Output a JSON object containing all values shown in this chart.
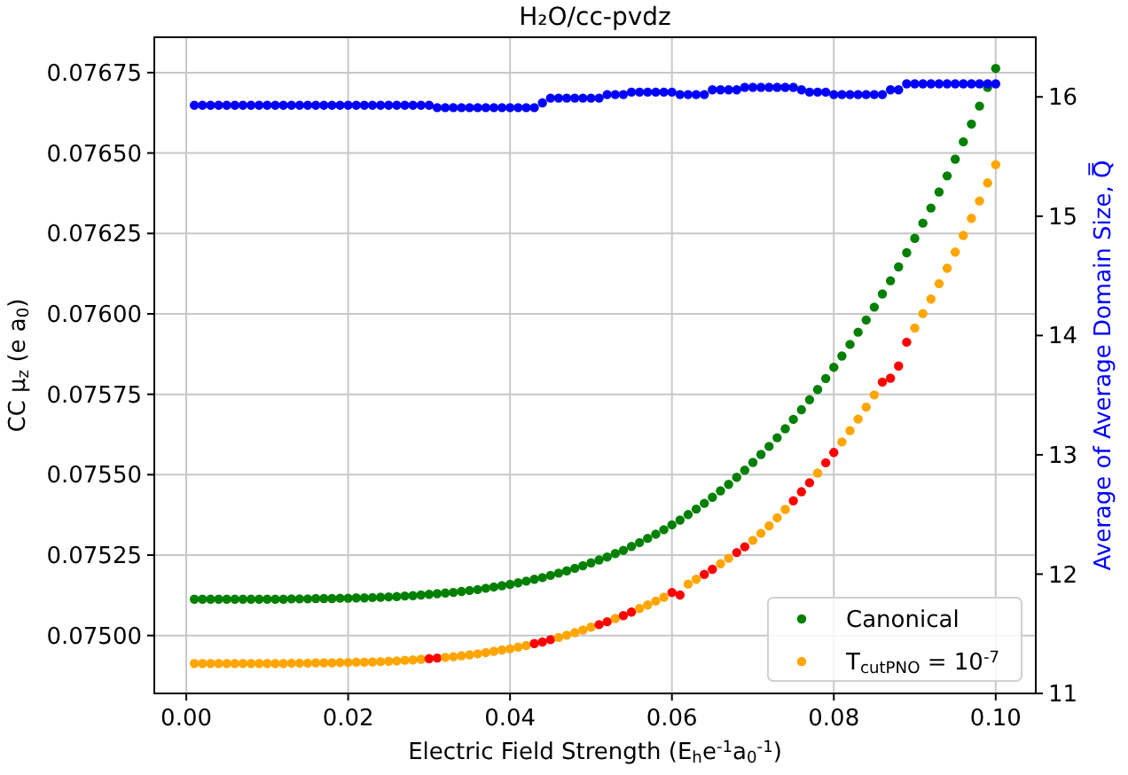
{
  "chart_data": {
    "type": "scatter",
    "title": "H₂O/cc-pvdz",
    "xlabel": "Electric Field Strength (E$_{h}$e$^{-1}$a$_{0}$$^{-1}$)",
    "ylabel": "CC μ$_{z}$ (e a$_{0}$)",
    "y2label": "Average of Average Domain Size, Q̿",
    "x": [
      0.001,
      0.002,
      0.003,
      0.004,
      0.005,
      0.006,
      0.007,
      0.008,
      0.009,
      0.01,
      0.011,
      0.012,
      0.013,
      0.014,
      0.015,
      0.016,
      0.017,
      0.018,
      0.019,
      0.02,
      0.021,
      0.022,
      0.023,
      0.024,
      0.025,
      0.026,
      0.027,
      0.028,
      0.029,
      0.03,
      0.031,
      0.032,
      0.033,
      0.034,
      0.035,
      0.036,
      0.037,
      0.038,
      0.039,
      0.04,
      0.041,
      0.042,
      0.043,
      0.044,
      0.045,
      0.046,
      0.047,
      0.048,
      0.049,
      0.05,
      0.051,
      0.052,
      0.053,
      0.054,
      0.055,
      0.056,
      0.057,
      0.058,
      0.059,
      0.06,
      0.061,
      0.062,
      0.063,
      0.064,
      0.065,
      0.066,
      0.067,
      0.068,
      0.069,
      0.07,
      0.071,
      0.072,
      0.073,
      0.074,
      0.075,
      0.076,
      0.077,
      0.078,
      0.079,
      0.08,
      0.081,
      0.082,
      0.083,
      0.084,
      0.085,
      0.086,
      0.087,
      0.088,
      0.089,
      0.09,
      0.091,
      0.092,
      0.093,
      0.094,
      0.095,
      0.096,
      0.097,
      0.098,
      0.099,
      0.1
    ],
    "series": [
      {
        "name": "Canonical",
        "color": "#008000",
        "values": [
          0.075113,
          0.075113,
          0.075113,
          0.075113,
          0.075113,
          0.075113,
          0.075113,
          0.075113,
          0.075113,
          0.075113,
          0.075113,
          0.075113,
          0.075114,
          0.075114,
          0.075114,
          0.075115,
          0.075115,
          0.075115,
          0.075116,
          0.075116,
          0.075117,
          0.075117,
          0.075118,
          0.075119,
          0.07512,
          0.075121,
          0.075123,
          0.075124,
          0.075126,
          0.075128,
          0.07513,
          0.075132,
          0.075134,
          0.075137,
          0.07514,
          0.075143,
          0.075147,
          0.075151,
          0.075155,
          0.075159,
          0.075164,
          0.075169,
          0.075175,
          0.07518,
          0.075187,
          0.075194,
          0.075201,
          0.075209,
          0.075217,
          0.075226,
          0.075235,
          0.075244,
          0.075255,
          0.075265,
          0.075277,
          0.075289,
          0.075302,
          0.075315,
          0.075329,
          0.075344,
          0.075359,
          0.075376,
          0.075393,
          0.075411,
          0.07543,
          0.07545,
          0.07547,
          0.075492,
          0.075514,
          0.075538,
          0.075563,
          0.075588,
          0.075615,
          0.075643,
          0.075672,
          0.075702,
          0.075733,
          0.075765,
          0.075799,
          0.075834,
          0.075869,
          0.075905,
          0.075943,
          0.075981,
          0.076021,
          0.076062,
          0.076103,
          0.076146,
          0.07619,
          0.076235,
          0.076282,
          0.076329,
          0.076379,
          0.076429,
          0.076481,
          0.076535,
          0.07659,
          0.076646,
          0.076704,
          0.076763
        ]
      },
      {
        "name": "T$_{cutPNO}$ = 10$^{-7}$",
        "color": "#ffa500",
        "values": [
          0.074913,
          0.074913,
          0.074913,
          0.074913,
          0.074913,
          0.074913,
          0.074913,
          0.074913,
          0.074913,
          0.074913,
          0.074913,
          0.074913,
          0.074914,
          0.074914,
          0.074914,
          0.074915,
          0.074915,
          0.074915,
          0.074916,
          0.074916,
          0.074917,
          0.074917,
          0.074918,
          0.074919,
          0.07492,
          0.074921,
          0.074923,
          0.074924,
          0.074926,
          0.074928,
          0.07493,
          0.074932,
          0.074934,
          0.074937,
          0.07494,
          0.074943,
          0.074947,
          0.074951,
          0.074955,
          0.074959,
          0.074964,
          0.074969,
          0.074975,
          0.07498,
          0.074987,
          0.074994,
          0.075001,
          0.075009,
          0.075017,
          0.075026,
          0.075034,
          0.075043,
          0.075053,
          0.075062,
          0.075073,
          0.075084,
          0.075095,
          0.075107,
          0.075119,
          0.075134,
          0.075126,
          0.07516,
          0.075175,
          0.07519,
          0.075206,
          0.075223,
          0.07524,
          0.075258,
          0.075276,
          0.075296,
          0.075318,
          0.075341,
          0.075366,
          0.075392,
          0.075419,
          0.075447,
          0.075475,
          0.075505,
          0.075537,
          0.075569,
          0.075602,
          0.075637,
          0.075673,
          0.07571,
          0.075748,
          0.075788,
          0.0758,
          0.075838,
          0.075912,
          0.075956,
          0.076001,
          0.076046,
          0.076094,
          0.076142,
          0.076192,
          0.076244,
          0.076297,
          0.076351,
          0.076407,
          0.076464
        ],
        "colors": [
          "#ffa500",
          "#ffa500",
          "#ffa500",
          "#ffa500",
          "#ffa500",
          "#ffa500",
          "#ffa500",
          "#ffa500",
          "#ffa500",
          "#ffa500",
          "#ffa500",
          "#ffa500",
          "#ffa500",
          "#ffa500",
          "#ffa500",
          "#ffa500",
          "#ffa500",
          "#ffa500",
          "#ffa500",
          "#ffa500",
          "#ffa500",
          "#ffa500",
          "#ffa500",
          "#ffa500",
          "#ffa500",
          "#ffa500",
          "#ffa500",
          "#ffa500",
          "#ffa500",
          "#ff0000",
          "#ff0000",
          "#ffa500",
          "#ffa500",
          "#ffa500",
          "#ffa500",
          "#ffa500",
          "#ffa500",
          "#ffa500",
          "#ffa500",
          "#ffa500",
          "#ffa500",
          "#ffa500",
          "#ff0000",
          "#ff0000",
          "#ff0000",
          "#ffa500",
          "#ffa500",
          "#ffa500",
          "#ffa500",
          "#ffa500",
          "#ff0000",
          "#ff0000",
          "#ffa500",
          "#ff0000",
          "#ff0000",
          "#ffa500",
          "#ffa500",
          "#ffa500",
          "#ffa500",
          "#ff0000",
          "#ff0000",
          "#ffa500",
          "#ffa500",
          "#ff0000",
          "#ff0000",
          "#ffa500",
          "#ffa500",
          "#ff0000",
          "#ff0000",
          "#ffa500",
          "#ffa500",
          "#ffa500",
          "#ffa500",
          "#ffa500",
          "#ff0000",
          "#ff0000",
          "#ff0000",
          "#ffa500",
          "#ff0000",
          "#ff0000",
          "#ffa500",
          "#ffa500",
          "#ffa500",
          "#ffa500",
          "#ffa500",
          "#ff0000",
          "#ff0000",
          "#ff0000",
          "#ff0000",
          "#ffa500",
          "#ffa500",
          "#ffa500",
          "#ffa500",
          "#ffa500",
          "#ffa500",
          "#ffa500",
          "#ffa500",
          "#ffa500",
          "#ffa500",
          "#ffa500"
        ]
      },
      {
        "color": "#0000ff",
        "axis": "y2",
        "values": [
          15.93,
          15.93,
          15.93,
          15.93,
          15.93,
          15.93,
          15.93,
          15.93,
          15.93,
          15.93,
          15.93,
          15.93,
          15.93,
          15.93,
          15.93,
          15.93,
          15.93,
          15.93,
          15.93,
          15.93,
          15.93,
          15.93,
          15.93,
          15.93,
          15.93,
          15.93,
          15.93,
          15.93,
          15.93,
          15.93,
          15.91,
          15.91,
          15.91,
          15.91,
          15.91,
          15.91,
          15.91,
          15.91,
          15.91,
          15.91,
          15.91,
          15.91,
          15.91,
          15.95,
          15.99,
          15.99,
          15.99,
          15.99,
          15.99,
          15.99,
          15.99,
          16.02,
          16.02,
          16.02,
          16.04,
          16.04,
          16.04,
          16.04,
          16.04,
          16.04,
          16.02,
          16.02,
          16.02,
          16.02,
          16.06,
          16.06,
          16.06,
          16.06,
          16.08,
          16.08,
          16.08,
          16.08,
          16.08,
          16.08,
          16.08,
          16.06,
          16.04,
          16.04,
          16.04,
          16.02,
          16.02,
          16.02,
          16.02,
          16.02,
          16.02,
          16.02,
          16.06,
          16.06,
          16.11,
          16.11,
          16.11,
          16.11,
          16.11,
          16.11,
          16.11,
          16.11,
          16.11,
          16.11,
          16.11,
          16.11
        ]
      }
    ],
    "xlim": [
      -0.00395,
      0.10495
    ],
    "xticks": [
      {
        "value": 0,
        "label": "0.00"
      },
      0.02,
      0.04,
      0.06,
      0.08,
      {
        "value": 0.1,
        "label": "0.10"
      }
    ],
    "ylim": [
      0.07482,
      0.07686
    ],
    "yticks": [
      {
        "value": 0.075,
        "label": "0.07500"
      },
      0.07525,
      {
        "value": 0.0755,
        "label": "0.07550"
      },
      0.07575,
      {
        "value": 0.076,
        "label": "0.07600"
      },
      0.07625,
      {
        "value": 0.0765,
        "label": "0.07650"
      },
      0.07675
    ],
    "y2lim": [
      11,
      16.5
    ],
    "y2ticks": [
      11,
      12,
      13,
      14,
      15,
      16
    ],
    "grid": true,
    "legend": "bottom right",
    "marker": "circle"
  }
}
